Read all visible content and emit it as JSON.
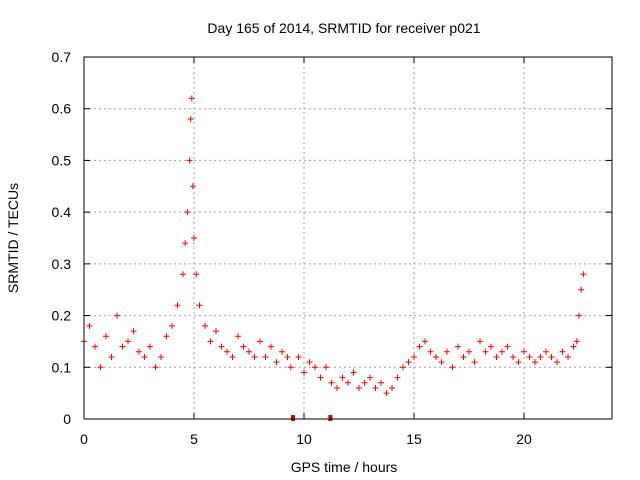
{
  "chart_data": {
    "type": "scatter",
    "title": "Day 165 of 2014, SRMTID for receiver p021",
    "xlabel": "GPS time / hours",
    "ylabel": "SRMTID / TECUs",
    "xlim": [
      0,
      24
    ],
    "ylim": [
      0,
      0.7
    ],
    "xticks": [
      0,
      5,
      10,
      15,
      20
    ],
    "xtick_labels": [
      "0",
      "5",
      "10",
      "15",
      "20"
    ],
    "yticks": [
      0,
      0.1,
      0.2,
      0.3,
      0.4,
      0.5,
      0.6,
      0.7
    ],
    "ytick_labels": [
      "0",
      "0.1",
      "0.2",
      "0.3",
      "0.4",
      "0.5",
      "0.6",
      "0.7"
    ],
    "grid": true,
    "marker": "+",
    "color": "#ff0000",
    "data_gap_markers_x": [
      9.5,
      11.2
    ],
    "series": [
      {
        "name": "SRMTID",
        "x": [
          0.0,
          0.25,
          0.5,
          0.75,
          1.0,
          1.25,
          1.5,
          1.75,
          2.0,
          2.25,
          2.5,
          2.75,
          3.0,
          3.25,
          3.5,
          3.75,
          4.0,
          4.25,
          4.5,
          4.6,
          4.7,
          4.8,
          4.85,
          4.9,
          4.95,
          5.0,
          5.1,
          5.25,
          5.5,
          5.75,
          6.0,
          6.25,
          6.5,
          6.75,
          7.0,
          7.25,
          7.5,
          7.75,
          8.0,
          8.25,
          8.5,
          8.75,
          9.0,
          9.25,
          9.4,
          9.75,
          10.0,
          10.25,
          10.5,
          10.75,
          11.0,
          11.25,
          11.5,
          11.75,
          12.0,
          12.25,
          12.5,
          12.75,
          13.0,
          13.25,
          13.5,
          13.75,
          14.0,
          14.25,
          14.5,
          14.75,
          15.0,
          15.25,
          15.5,
          15.75,
          16.0,
          16.25,
          16.5,
          16.75,
          17.0,
          17.25,
          17.5,
          17.75,
          18.0,
          18.25,
          18.5,
          18.75,
          19.0,
          19.25,
          19.5,
          19.75,
          20.0,
          20.25,
          20.5,
          20.75,
          21.0,
          21.25,
          21.5,
          21.75,
          22.0,
          22.25,
          22.4,
          22.5,
          22.6,
          22.7
        ],
        "y": [
          0.15,
          0.18,
          0.14,
          0.1,
          0.16,
          0.12,
          0.2,
          0.14,
          0.15,
          0.17,
          0.13,
          0.12,
          0.14,
          0.1,
          0.12,
          0.16,
          0.18,
          0.22,
          0.28,
          0.34,
          0.4,
          0.5,
          0.58,
          0.62,
          0.45,
          0.35,
          0.28,
          0.22,
          0.18,
          0.15,
          0.17,
          0.14,
          0.13,
          0.12,
          0.16,
          0.14,
          0.13,
          0.12,
          0.15,
          0.12,
          0.14,
          0.11,
          0.13,
          0.12,
          0.1,
          0.12,
          0.09,
          0.11,
          0.1,
          0.08,
          0.1,
          0.07,
          0.06,
          0.08,
          0.07,
          0.09,
          0.06,
          0.07,
          0.08,
          0.06,
          0.07,
          0.05,
          0.06,
          0.08,
          0.1,
          0.11,
          0.12,
          0.14,
          0.15,
          0.13,
          0.12,
          0.11,
          0.13,
          0.1,
          0.14,
          0.12,
          0.13,
          0.11,
          0.15,
          0.13,
          0.14,
          0.12,
          0.13,
          0.14,
          0.12,
          0.11,
          0.13,
          0.12,
          0.11,
          0.12,
          0.13,
          0.12,
          0.11,
          0.13,
          0.12,
          0.14,
          0.15,
          0.2,
          0.25,
          0.28
        ]
      }
    ]
  }
}
